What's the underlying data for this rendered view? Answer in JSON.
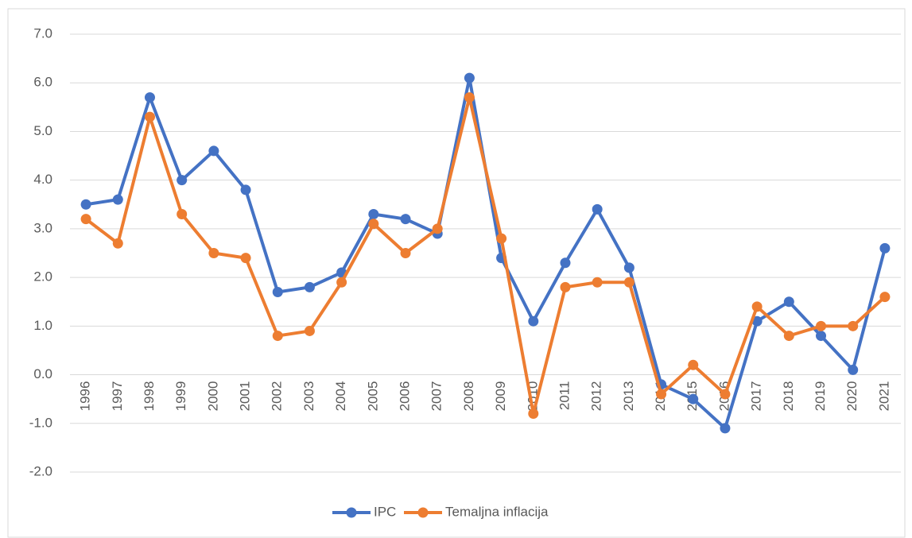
{
  "chart_data": {
    "type": "line",
    "categories": [
      "1996",
      "1997",
      "1998",
      "1999",
      "2000",
      "2001",
      "2002",
      "2003",
      "2004",
      "2005",
      "2006",
      "2007",
      "2008",
      "2009",
      "2010",
      "2011",
      "2012",
      "2013",
      "2014",
      "2015",
      "2016",
      "2017",
      "2018",
      "2019",
      "2020",
      "2021"
    ],
    "series": [
      {
        "name": "IPC",
        "color": "#4472c4",
        "values": [
          3.5,
          3.6,
          5.7,
          4.0,
          4.6,
          3.8,
          1.7,
          1.8,
          2.1,
          3.3,
          3.2,
          2.9,
          6.1,
          2.4,
          1.1,
          2.3,
          3.4,
          2.2,
          -0.2,
          -0.5,
          -1.1,
          1.1,
          1.5,
          0.8,
          0.1,
          2.6
        ]
      },
      {
        "name": "Temaljna inflacija",
        "color": "#ed7d31",
        "values": [
          3.2,
          2.7,
          5.3,
          3.3,
          2.5,
          2.4,
          0.8,
          0.9,
          1.9,
          3.1,
          2.5,
          3.0,
          5.7,
          2.8,
          -0.8,
          1.8,
          1.9,
          1.9,
          -0.4,
          0.2,
          -0.4,
          1.4,
          0.8,
          1.0,
          1.0,
          1.6
        ]
      }
    ],
    "ylim": [
      -2,
      7
    ],
    "yticks": [
      {
        "value": -2,
        "label": "-2.0"
      },
      {
        "value": -1,
        "label": "-1.0"
      },
      {
        "value": 0,
        "label": "0.0"
      },
      {
        "value": 1,
        "label": "1.0"
      },
      {
        "value": 2,
        "label": "2.0"
      },
      {
        "value": 3,
        "label": "3.0"
      },
      {
        "value": 4,
        "label": "4.0"
      },
      {
        "value": 5,
        "label": "5.0"
      },
      {
        "value": 6,
        "label": "6.0"
      },
      {
        "value": 7,
        "label": "7.0"
      }
    ],
    "grid": true,
    "legend": "bottom"
  }
}
